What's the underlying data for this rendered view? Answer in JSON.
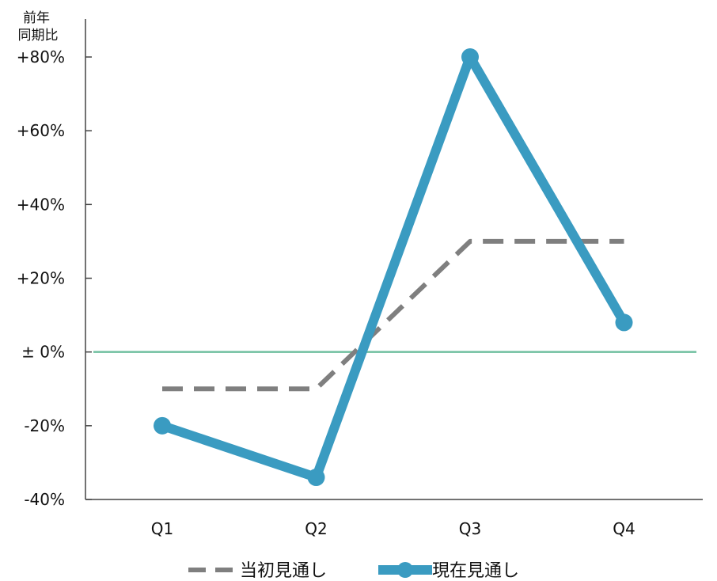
{
  "chart_data": {
    "type": "line",
    "ylabel_lines": [
      "前年",
      "同期比"
    ],
    "categories": [
      "Q1",
      "Q2",
      "Q3",
      "Q4"
    ],
    "ylim": [
      -40,
      80
    ],
    "yticks": [
      -40,
      -20,
      0,
      20,
      40,
      60,
      80
    ],
    "ytick_labels": [
      "-40%",
      "-20%",
      "± 0%",
      "+20%",
      "+40%",
      "+60%",
      "+80%"
    ],
    "baseline_value": 0,
    "grid": false,
    "legend_position": "bottom",
    "series": [
      {
        "name": "当初見通し",
        "values": [
          -10,
          -10,
          30,
          30
        ],
        "color": "#7f7f7f",
        "style": "dashed",
        "markers": false
      },
      {
        "name": "現在見通し",
        "values": [
          -20,
          -34,
          80,
          8
        ],
        "color": "#3a9bc1",
        "style": "solid",
        "markers": true
      }
    ],
    "baseline_color": "#6fbf9f",
    "axis_color": "#444444"
  }
}
